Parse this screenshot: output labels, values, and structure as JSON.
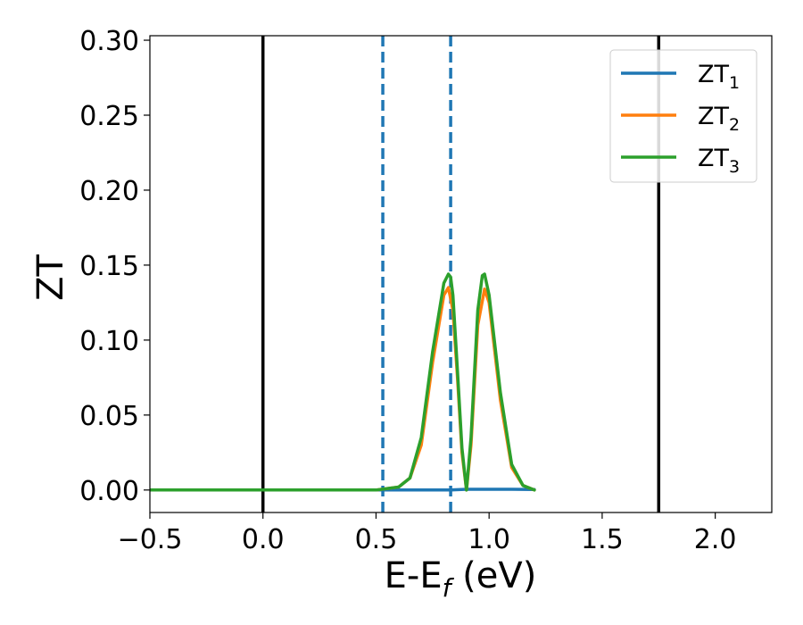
{
  "chart_data": {
    "type": "line",
    "xlabel": "E-E",
    "xlabel_sub": "f",
    "xlabel_unit": " (eV)",
    "ylabel": "ZT",
    "xlim": [
      -0.5,
      2.25
    ],
    "ylim": [
      -0.015,
      0.303
    ],
    "xticks": [
      -0.5,
      0.0,
      0.5,
      1.0,
      1.5,
      2.0
    ],
    "xtick_labels": [
      "−0.5",
      "0.0",
      "0.5",
      "1.0",
      "1.5",
      "2.0"
    ],
    "yticks": [
      0.0,
      0.05,
      0.1,
      0.15,
      0.2,
      0.25,
      0.3
    ],
    "ytick_labels": [
      "0.00",
      "0.05",
      "0.10",
      "0.15",
      "0.20",
      "0.25",
      "0.30"
    ],
    "grid": false,
    "legend_position": "top-right",
    "vlines": [
      {
        "x": 0.0,
        "color": "#000000",
        "style": "solid"
      },
      {
        "x": 1.75,
        "color": "#000000",
        "style": "solid"
      },
      {
        "x": 0.53,
        "color": "#1f77b4",
        "style": "dashed"
      },
      {
        "x": 0.83,
        "color": "#1f77b4",
        "style": "dashed"
      }
    ],
    "series": [
      {
        "name": "ZT",
        "sub": "1",
        "color": "#1f77b4",
        "x": [
          -0.5,
          0.5,
          0.7,
          0.83,
          0.9,
          1.0,
          1.1,
          1.2
        ],
        "y": [
          0.0,
          0.0,
          0.0,
          0.0,
          0.0005,
          0.0005,
          0.0005,
          0.0003
        ]
      },
      {
        "name": "ZT",
        "sub": "2",
        "color": "#ff7f0e",
        "x": [
          -0.5,
          0.5,
          0.6,
          0.65,
          0.7,
          0.75,
          0.8,
          0.82,
          0.84,
          0.86,
          0.88,
          0.9,
          0.92,
          0.95,
          0.98,
          1.0,
          1.05,
          1.1,
          1.15,
          1.2
        ],
        "y": [
          0.0,
          0.0,
          0.002,
          0.008,
          0.03,
          0.085,
          0.13,
          0.135,
          0.12,
          0.075,
          0.025,
          0.0,
          0.03,
          0.11,
          0.134,
          0.125,
          0.06,
          0.015,
          0.003,
          0.0
        ]
      },
      {
        "name": "ZT",
        "sub": "3",
        "color": "#2ca02c",
        "x": [
          -0.5,
          0.5,
          0.6,
          0.65,
          0.7,
          0.75,
          0.8,
          0.82,
          0.83,
          0.84,
          0.86,
          0.88,
          0.9,
          0.92,
          0.95,
          0.97,
          0.98,
          1.0,
          1.05,
          1.1,
          1.15,
          1.2
        ],
        "y": [
          0.0,
          0.0,
          0.002,
          0.008,
          0.035,
          0.092,
          0.138,
          0.144,
          0.142,
          0.13,
          0.08,
          0.028,
          0.0,
          0.035,
          0.12,
          0.143,
          0.144,
          0.13,
          0.065,
          0.017,
          0.003,
          0.0
        ]
      }
    ]
  }
}
